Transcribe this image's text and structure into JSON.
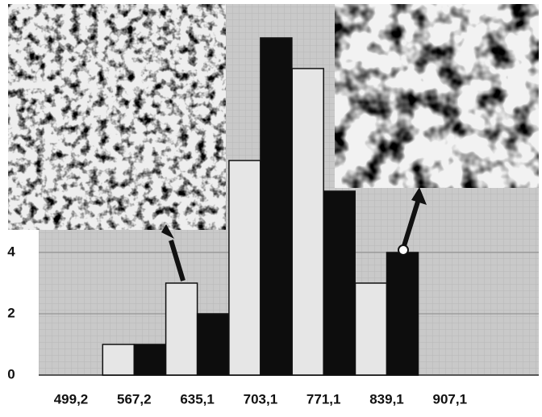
{
  "chart_data": {
    "type": "bar",
    "categories": [
      "499,2",
      "567,2",
      "635,1",
      "703,1",
      "771,1",
      "839,1",
      "907,1"
    ],
    "series": [
      {
        "color": "#e6e6e6",
        "values": [
          null,
          1,
          3,
          7,
          10,
          3,
          null
        ]
      },
      {
        "color": "#0d0d0d",
        "values": [
          null,
          1,
          2,
          11,
          6,
          4,
          null
        ]
      }
    ],
    "ylim": [
      0,
      12
    ],
    "yticks": [
      0,
      2,
      4
    ],
    "grid": true
  }
}
